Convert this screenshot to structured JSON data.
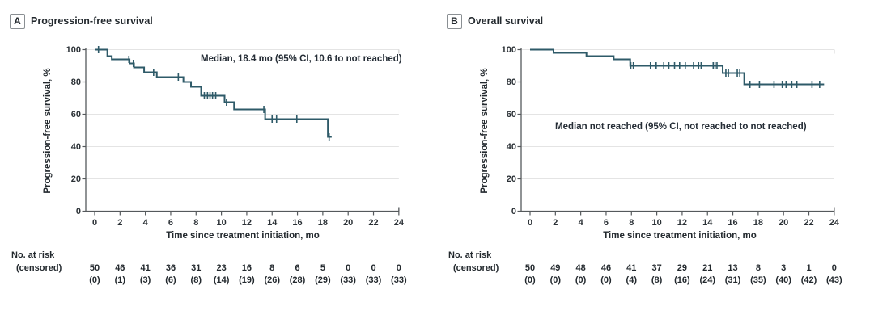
{
  "colors": {
    "curve": "#2e5a68",
    "axis": "#55595c",
    "gridline": "#e4e4e4",
    "text": "#23292e"
  },
  "chart_data": [
    {
      "type": "line",
      "km_style": "kaplan-meier-step",
      "panel_label": "A",
      "title": "Progression-free survival",
      "xlabel": "Time since treatment initiation, mo",
      "ylabel": "Progression-free survival, %",
      "annotation": "Median, 18.4 mo (95% CI, 10.6 to not reached)",
      "xlim": [
        0,
        24
      ],
      "ylim": [
        0,
        100
      ],
      "xticks": [
        0,
        2,
        4,
        6,
        8,
        10,
        12,
        14,
        16,
        18,
        20,
        22,
        24
      ],
      "yticks": [
        0,
        20,
        40,
        60,
        80,
        100
      ],
      "grid": true,
      "steps_time_pct": [
        [
          0,
          100
        ],
        [
          1.0,
          96
        ],
        [
          1.35,
          94
        ],
        [
          2.75,
          91.5
        ],
        [
          3.1,
          89
        ],
        [
          3.9,
          86
        ],
        [
          4.9,
          83
        ],
        [
          7.0,
          80
        ],
        [
          7.6,
          77
        ],
        [
          8.4,
          71.5
        ],
        [
          10.25,
          67.5
        ],
        [
          11.0,
          63
        ],
        [
          13.45,
          57
        ],
        [
          18.4,
          46
        ]
      ],
      "curve_end_time": 18.7,
      "censor_marks_time_pct": [
        [
          0.3,
          100
        ],
        [
          2.7,
          94
        ],
        [
          3.05,
          91.5
        ],
        [
          4.65,
          86
        ],
        [
          6.6,
          83
        ],
        [
          8.65,
          71.5
        ],
        [
          8.9,
          71.5
        ],
        [
          9.1,
          71.5
        ],
        [
          9.3,
          71.5
        ],
        [
          9.55,
          71.5
        ],
        [
          10.4,
          67.5
        ],
        [
          13.35,
          63
        ],
        [
          14.0,
          57
        ],
        [
          14.35,
          57
        ],
        [
          15.95,
          57
        ],
        [
          18.5,
          46
        ]
      ],
      "at_risk_label": "No. at risk",
      "censored_label": "(censored)",
      "at_risk_times": [
        0,
        2,
        4,
        6,
        8,
        10,
        12,
        14,
        16,
        18,
        20,
        22,
        24
      ],
      "at_risk": [
        50,
        46,
        41,
        36,
        31,
        23,
        16,
        8,
        6,
        5,
        0,
        0,
        0
      ],
      "censored": [
        "(0)",
        "(1)",
        "(3)",
        "(6)",
        "(8)",
        "(14)",
        "(19)",
        "(26)",
        "(28)",
        "(29)",
        "(33)",
        "(33)",
        "(33)"
      ]
    },
    {
      "type": "line",
      "km_style": "kaplan-meier-step",
      "panel_label": "B",
      "title": "Overall survival",
      "xlabel": "Time since treatment initiation, mo",
      "ylabel": "Progression-free survival, %",
      "annotation": "Median not reached (95% CI, not reached to not reached)",
      "xlim": [
        0,
        24
      ],
      "ylim": [
        0,
        100
      ],
      "xticks": [
        0,
        2,
        4,
        6,
        8,
        10,
        12,
        14,
        16,
        18,
        20,
        22,
        24
      ],
      "yticks": [
        0,
        20,
        40,
        60,
        80,
        100
      ],
      "grid": true,
      "steps_time_pct": [
        [
          0,
          100
        ],
        [
          1.85,
          98
        ],
        [
          4.45,
          96
        ],
        [
          6.6,
          94
        ],
        [
          7.9,
          90
        ],
        [
          15.2,
          85.5
        ],
        [
          16.9,
          78.5
        ]
      ],
      "curve_end_time": 23.2,
      "censor_marks_time_pct": [
        [
          7.95,
          90
        ],
        [
          8.15,
          90
        ],
        [
          9.5,
          90
        ],
        [
          9.95,
          90
        ],
        [
          10.55,
          90
        ],
        [
          10.95,
          90
        ],
        [
          11.4,
          90
        ],
        [
          11.8,
          90
        ],
        [
          12.25,
          90
        ],
        [
          12.9,
          90
        ],
        [
          13.3,
          90
        ],
        [
          13.5,
          90
        ],
        [
          14.45,
          90
        ],
        [
          14.6,
          90
        ],
        [
          14.75,
          90
        ],
        [
          15.45,
          85.5
        ],
        [
          15.65,
          85.5
        ],
        [
          16.35,
          85.5
        ],
        [
          16.55,
          85.5
        ],
        [
          17.35,
          78.5
        ],
        [
          18.1,
          78.5
        ],
        [
          19.25,
          78.5
        ],
        [
          19.9,
          78.5
        ],
        [
          20.2,
          78.5
        ],
        [
          20.65,
          78.5
        ],
        [
          21.05,
          78.5
        ],
        [
          22.25,
          78.5
        ],
        [
          22.85,
          78.5
        ]
      ],
      "at_risk_label": "No. at risk",
      "censored_label": "(censored)",
      "at_risk_times": [
        0,
        2,
        4,
        6,
        8,
        10,
        12,
        14,
        16,
        18,
        20,
        22,
        24
      ],
      "at_risk": [
        50,
        49,
        48,
        46,
        41,
        37,
        29,
        21,
        13,
        8,
        3,
        1,
        0
      ],
      "censored": [
        "(0)",
        "(0)",
        "(0)",
        "(0)",
        "(4)",
        "(8)",
        "(16)",
        "(24)",
        "(31)",
        "(35)",
        "(40)",
        "(42)",
        "(43)"
      ]
    }
  ]
}
